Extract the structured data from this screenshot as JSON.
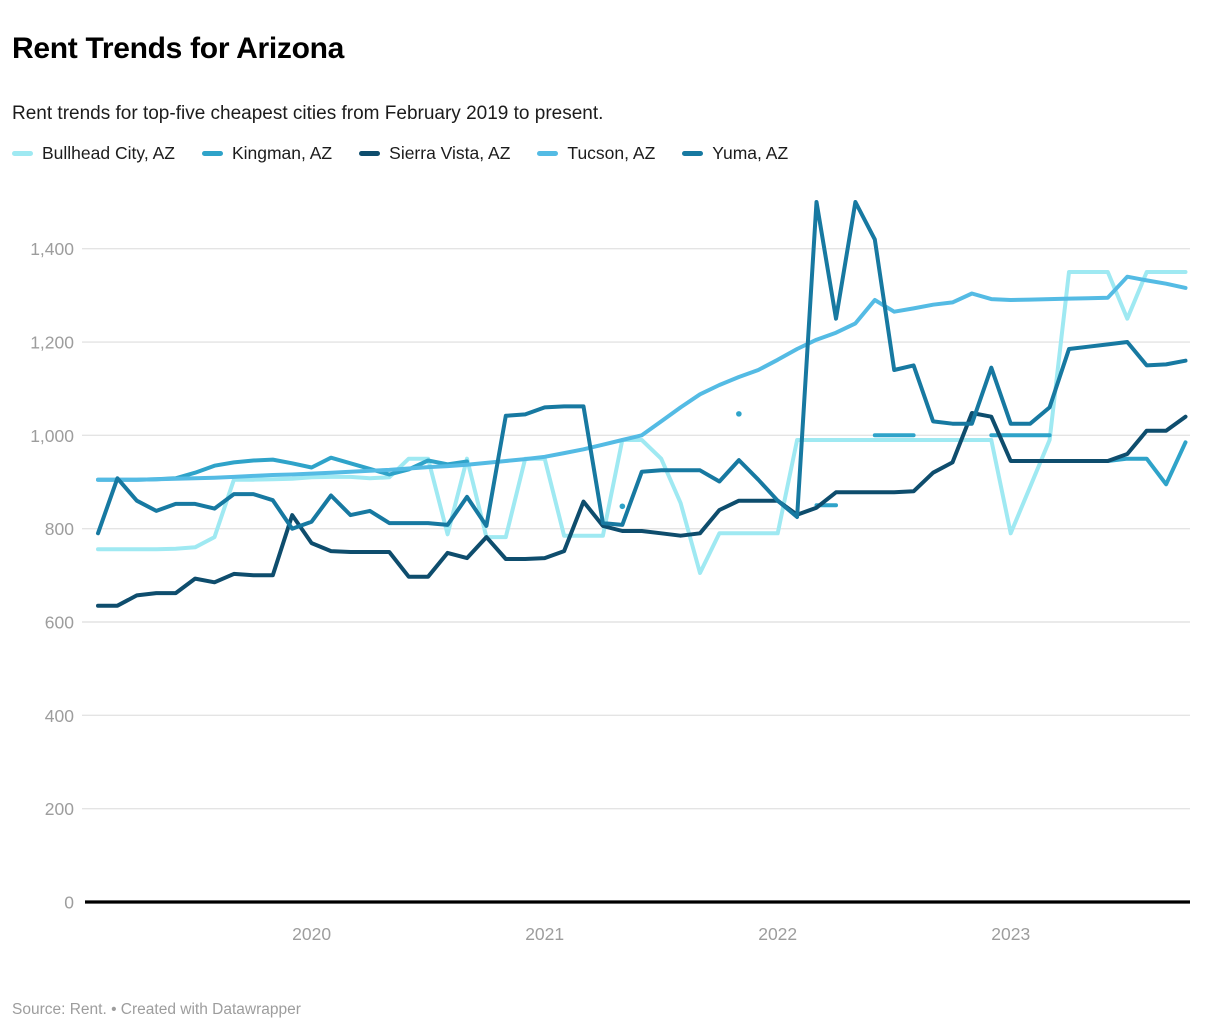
{
  "page": {
    "title": "Rent Trends for Arizona",
    "subtitle": "Rent trends for top-five cheapest cities from February 2019 to present.",
    "footer": "Source: Rent. • Created with Datawrapper"
  },
  "chart_data": {
    "type": "line",
    "title": "Rent Trends for Arizona",
    "x_unit": "month",
    "x_start": {
      "year": 2019,
      "month": 2
    },
    "x_tick_labels": [
      "2020",
      "2021",
      "2022",
      "2023"
    ],
    "y_ticks": [
      0,
      200,
      400,
      600,
      800,
      1000,
      1200,
      1400
    ],
    "ylim": [
      0,
      1500
    ],
    "grid": "horizontal",
    "legend_position": "top",
    "colors": {
      "axis_text": "#9d9d9d",
      "gridline": "#e4e4e4",
      "baseline": "#000000"
    },
    "series": [
      {
        "name": "Bullhead City, AZ",
        "color": "#9fe9f2",
        "values": [
          756,
          756,
          756,
          756,
          757,
          760,
          782,
          905,
          905,
          906,
          907,
          910,
          911,
          911,
          908,
          910,
          950,
          950,
          788,
          950,
          782,
          782,
          950,
          950,
          785,
          785,
          785,
          990,
          990,
          950,
          855,
          705,
          790,
          790,
          790,
          790,
          990,
          990,
          990,
          990,
          990,
          990,
          990,
          990,
          990,
          990,
          990,
          790,
          890,
          990,
          1350,
          1350,
          1350,
          1250,
          1350,
          1350,
          1350
        ]
      },
      {
        "name": "Kingman, AZ",
        "color": "#2fa3c9",
        "values": [
          905,
          905,
          905,
          906,
          908,
          920,
          935,
          942,
          946,
          948,
          940,
          931,
          952,
          940,
          928,
          916,
          927,
          946,
          938,
          944,
          null,
          null,
          null,
          null,
          null,
          null,
          null,
          848,
          null,
          null,
          null,
          null,
          null,
          1046,
          null,
          null,
          null,
          850,
          850,
          null,
          1000,
          1000,
          1000,
          null,
          null,
          null,
          1000,
          1000,
          1000,
          1000,
          null,
          null,
          945,
          950,
          950,
          895,
          985
        ]
      },
      {
        "name": "Sierra Vista, AZ",
        "color": "#0e4d6d",
        "values": [
          635,
          635,
          657,
          662,
          662,
          693,
          685,
          703,
          700,
          700,
          829,
          769,
          752,
          750,
          750,
          750,
          697,
          697,
          748,
          737,
          782,
          735,
          735,
          737,
          752,
          858,
          806,
          795,
          795,
          790,
          785,
          790,
          840,
          860,
          860,
          860,
          830,
          845,
          878,
          878,
          878,
          878,
          880,
          920,
          942,
          1048,
          1040,
          945,
          945,
          945,
          945,
          945,
          945,
          960,
          1010,
          1010,
          1040
        ]
      },
      {
        "name": "Tucson, AZ",
        "color": "#54bbe4",
        "values": [
          905,
          905,
          905,
          906,
          907,
          908,
          909,
          911,
          913,
          915,
          916,
          918,
          920,
          922,
          924,
          926,
          929,
          932,
          934,
          937,
          941,
          945,
          949,
          954,
          962,
          970,
          980,
          990,
          1000,
          1030,
          1060,
          1088,
          1108,
          1125,
          1140,
          1162,
          1185,
          1205,
          1220,
          1240,
          1290,
          1265,
          1272,
          1280,
          1285,
          1304,
          1292,
          1290,
          1291,
          1292,
          1293,
          1294,
          1295,
          1340,
          1332,
          1325,
          1316
        ]
      },
      {
        "name": "Yuma, AZ",
        "color": "#1779a1",
        "values": [
          790,
          908,
          860,
          838,
          853,
          853,
          843,
          874,
          874,
          861,
          800,
          815,
          871,
          829,
          838,
          812,
          812,
          812,
          808,
          868,
          806,
          1042,
          1045,
          1060,
          1062,
          1062,
          812,
          808,
          922,
          925,
          925,
          925,
          901,
          947,
          905,
          860,
          825,
          1500,
          1250,
          1500,
          1420,
          1140,
          1150,
          1030,
          1025,
          1025,
          1145,
          1025,
          1025,
          1060,
          1185,
          1190,
          1195,
          1200,
          1150,
          1152,
          1160
        ]
      }
    ]
  }
}
